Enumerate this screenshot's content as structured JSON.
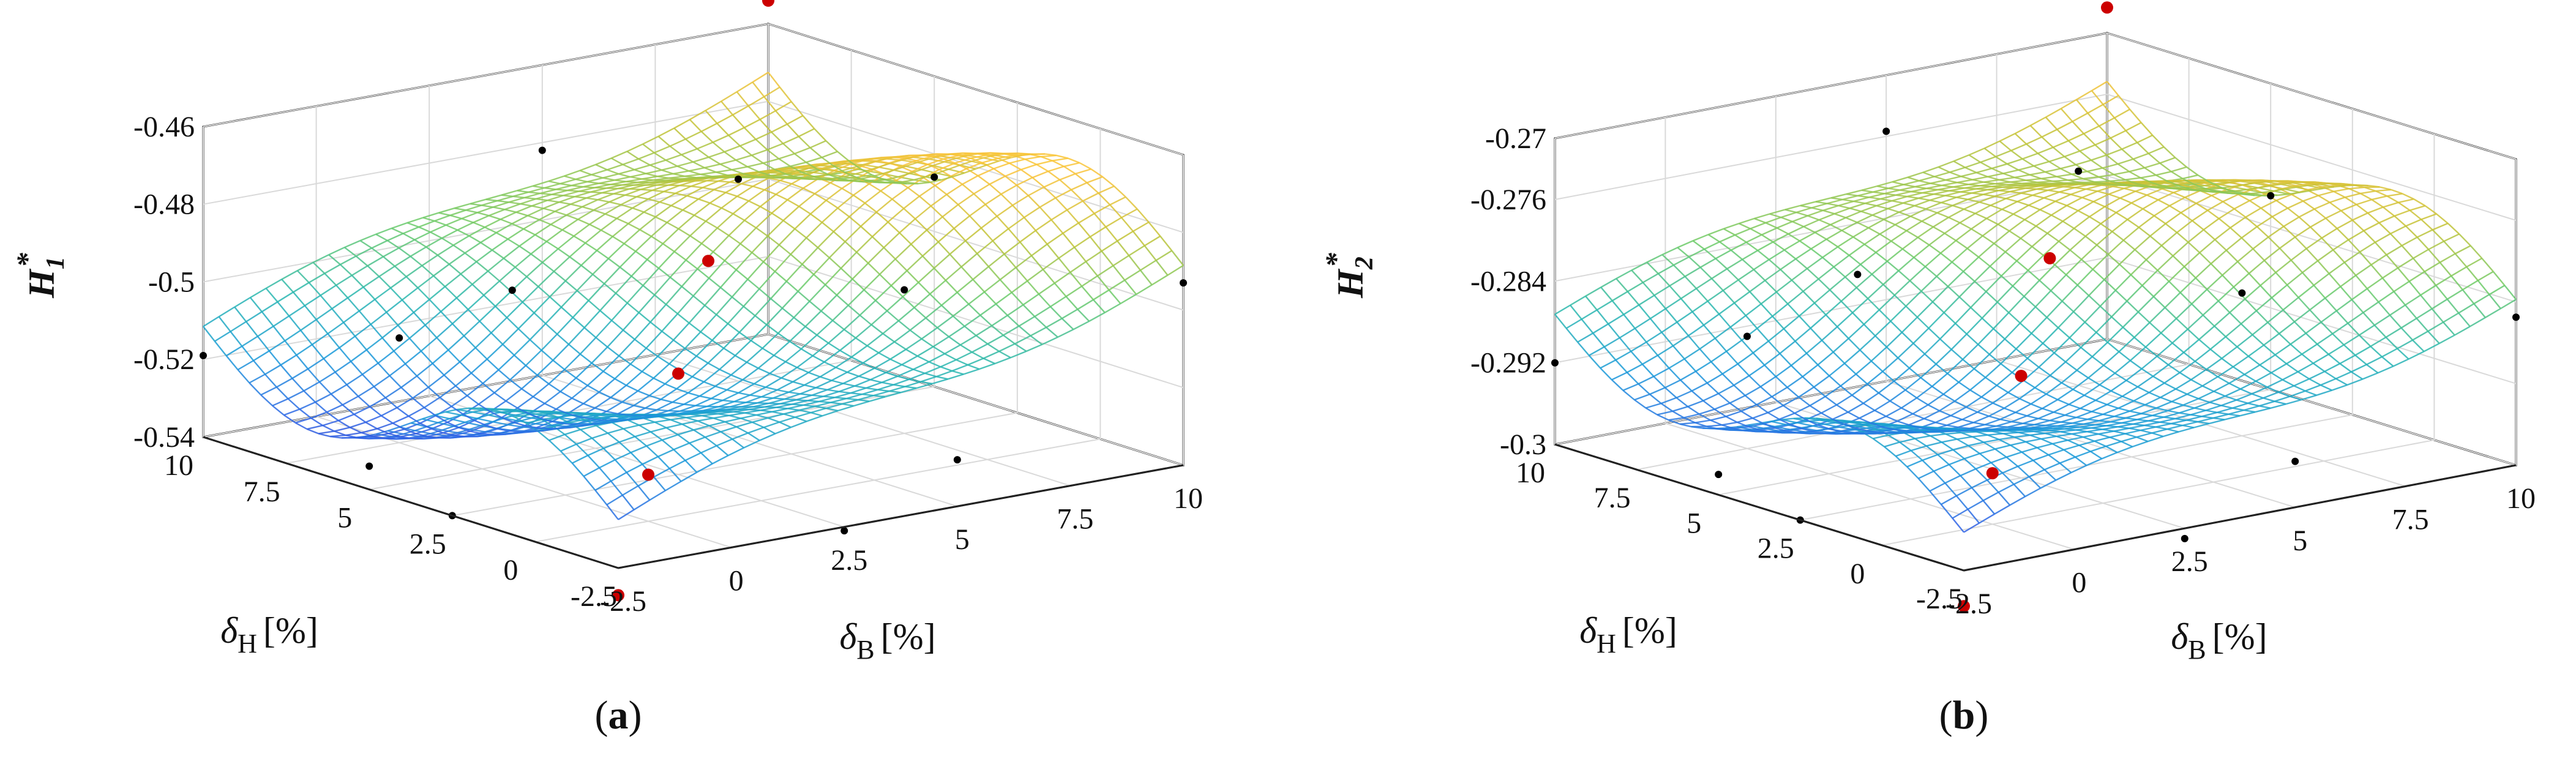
{
  "colors": {
    "colormap": [
      "#3e26a8",
      "#2f64e6",
      "#1a9ad9",
      "#2ab7b0",
      "#6ccb6a",
      "#c2c337",
      "#f9c33a",
      "#f6e61f"
    ],
    "experimental_point": "#cc0000",
    "model_point": "#000000",
    "axes": "#222222",
    "grid": "#d9d9d9"
  },
  "chart_data": [
    {
      "type": "surface",
      "panel_label": "(a)",
      "panel_letter": "a",
      "zlabel_symbol": "H",
      "zlabel_sub": "1",
      "zlabel_sup": "*",
      "xlabel_symbol": "δ",
      "xlabel_sub": "B",
      "xlabel_unit": "[%]",
      "ylabel_symbol": "δ",
      "ylabel_sub": "H",
      "ylabel_unit": "[%]",
      "xlim": [
        -2.5,
        10
      ],
      "ylim": [
        -2.5,
        10
      ],
      "zlim": [
        -0.54,
        -0.46
      ],
      "xticks": [
        -2.5,
        0,
        2.5,
        5,
        7.5,
        10
      ],
      "xtick_labels": [
        "-2.5",
        "0",
        "2.5",
        "5",
        "7.5",
        "10"
      ],
      "yticks": [
        -2.5,
        0,
        2.5,
        5,
        7.5,
        10
      ],
      "ytick_labels": [
        "-2.5",
        "0",
        "2.5",
        "5",
        "7.5",
        "10"
      ],
      "zticks": [
        -0.54,
        -0.52,
        -0.5,
        -0.48,
        -0.46
      ],
      "ztick_labels": [
        "-0.54",
        "-0.52",
        "-0.5",
        "-0.48",
        "-0.46"
      ],
      "surface_model": {
        "base": -0.5,
        "b1": 0.039,
        "b2": -0.006,
        "h1": 0.016,
        "h2": 0.004,
        "wave": 0.01
      },
      "red_points": [
        {
          "x": -2.5,
          "y": -2.5,
          "z": -0.547
        },
        {
          "x": 0,
          "y": 0,
          "z": -0.528
        },
        {
          "x": 2.5,
          "y": 2.5,
          "z": -0.514
        },
        {
          "x": 5,
          "y": 5,
          "z": -0.497
        },
        {
          "x": 10,
          "y": 10,
          "z": -0.454
        }
      ],
      "black_points": [
        {
          "x": 5,
          "y": -2.5,
          "z": -0.528
        },
        {
          "x": 10,
          "y": -2.5,
          "z": -0.493
        },
        {
          "x": -2.5,
          "y": 10,
          "z": -0.519
        },
        {
          "x": -2.5,
          "y": 5,
          "z": -0.534
        },
        {
          "x": 5,
          "y": 10,
          "z": -0.482
        },
        {
          "x": 10,
          "y": 5,
          "z": -0.486
        },
        {
          "x": 2.5,
          "y": 7.5,
          "z": -0.506
        },
        {
          "x": 7.5,
          "y": 2.5,
          "z": -0.503
        },
        {
          "x": 0,
          "y": 7.5,
          "z": -0.513
        },
        {
          "x": 7.5,
          "y": 7.5,
          "z": -0.488
        },
        {
          "x": 2.5,
          "y": -2.5,
          "z": -0.541
        },
        {
          "x": -2.5,
          "y": 2.5,
          "z": -0.54
        }
      ]
    },
    {
      "type": "surface",
      "panel_label": "(b)",
      "panel_letter": "b",
      "zlabel_symbol": "H",
      "zlabel_sub": "2",
      "zlabel_sup": "*",
      "xlabel_symbol": "δ",
      "xlabel_sub": "B",
      "xlabel_unit": "[%]",
      "ylabel_symbol": "δ",
      "ylabel_sub": "H",
      "ylabel_unit": "[%]",
      "xlim": [
        -2.5,
        10
      ],
      "ylim": [
        -2.5,
        10
      ],
      "zlim": [
        -0.3,
        -0.27
      ],
      "xticks": [
        -2.5,
        0,
        2.5,
        5,
        7.5,
        10
      ],
      "xtick_labels": [
        "-2.5",
        "0",
        "2.5",
        "5",
        "7.5",
        "10"
      ],
      "yticks": [
        -2.5,
        0,
        2.5,
        5,
        7.5,
        10
      ],
      "ytick_labels": [
        "-2.5",
        "0",
        "2.5",
        "5",
        "7.5",
        "10"
      ],
      "zticks": [
        -0.3,
        -0.292,
        -0.284,
        -0.276,
        -0.27
      ],
      "ztick_labels": [
        "-0.3",
        "-0.292",
        "-0.284",
        "-0.276",
        "-0.27"
      ],
      "surface_model": {
        "base": -0.2855,
        "b1": 0.0125,
        "b2": -0.002,
        "h1": 0.009,
        "h2": 0.001,
        "wave": 0.0035
      },
      "red_points": [
        {
          "x": -2.5,
          "y": -2.5,
          "z": -0.3035
        },
        {
          "x": 0,
          "y": 0,
          "z": -0.295
        },
        {
          "x": 2.5,
          "y": 2.5,
          "z": -0.29
        },
        {
          "x": 5,
          "y": 5,
          "z": -0.283
        },
        {
          "x": 10,
          "y": 10,
          "z": -0.2675
        }
      ],
      "black_points": [
        {
          "x": 5,
          "y": -2.5,
          "z": -0.2955
        },
        {
          "x": 10,
          "y": -2.5,
          "z": -0.2855
        },
        {
          "x": -2.5,
          "y": 10,
          "z": -0.292
        },
        {
          "x": -2.5,
          "y": 5,
          "z": -0.298
        },
        {
          "x": 5,
          "y": 10,
          "z": -0.2755
        },
        {
          "x": 10,
          "y": 5,
          "z": -0.281
        },
        {
          "x": 2.5,
          "y": 7.5,
          "z": -0.285
        },
        {
          "x": 7.5,
          "y": 2.5,
          "z": -0.286
        },
        {
          "x": 0,
          "y": 7.5,
          "z": -0.289
        },
        {
          "x": 7.5,
          "y": 7.5,
          "z": -0.279
        },
        {
          "x": 2.5,
          "y": -2.5,
          "z": -0.301
        },
        {
          "x": -2.5,
          "y": 2.5,
          "z": -0.3
        }
      ]
    }
  ]
}
